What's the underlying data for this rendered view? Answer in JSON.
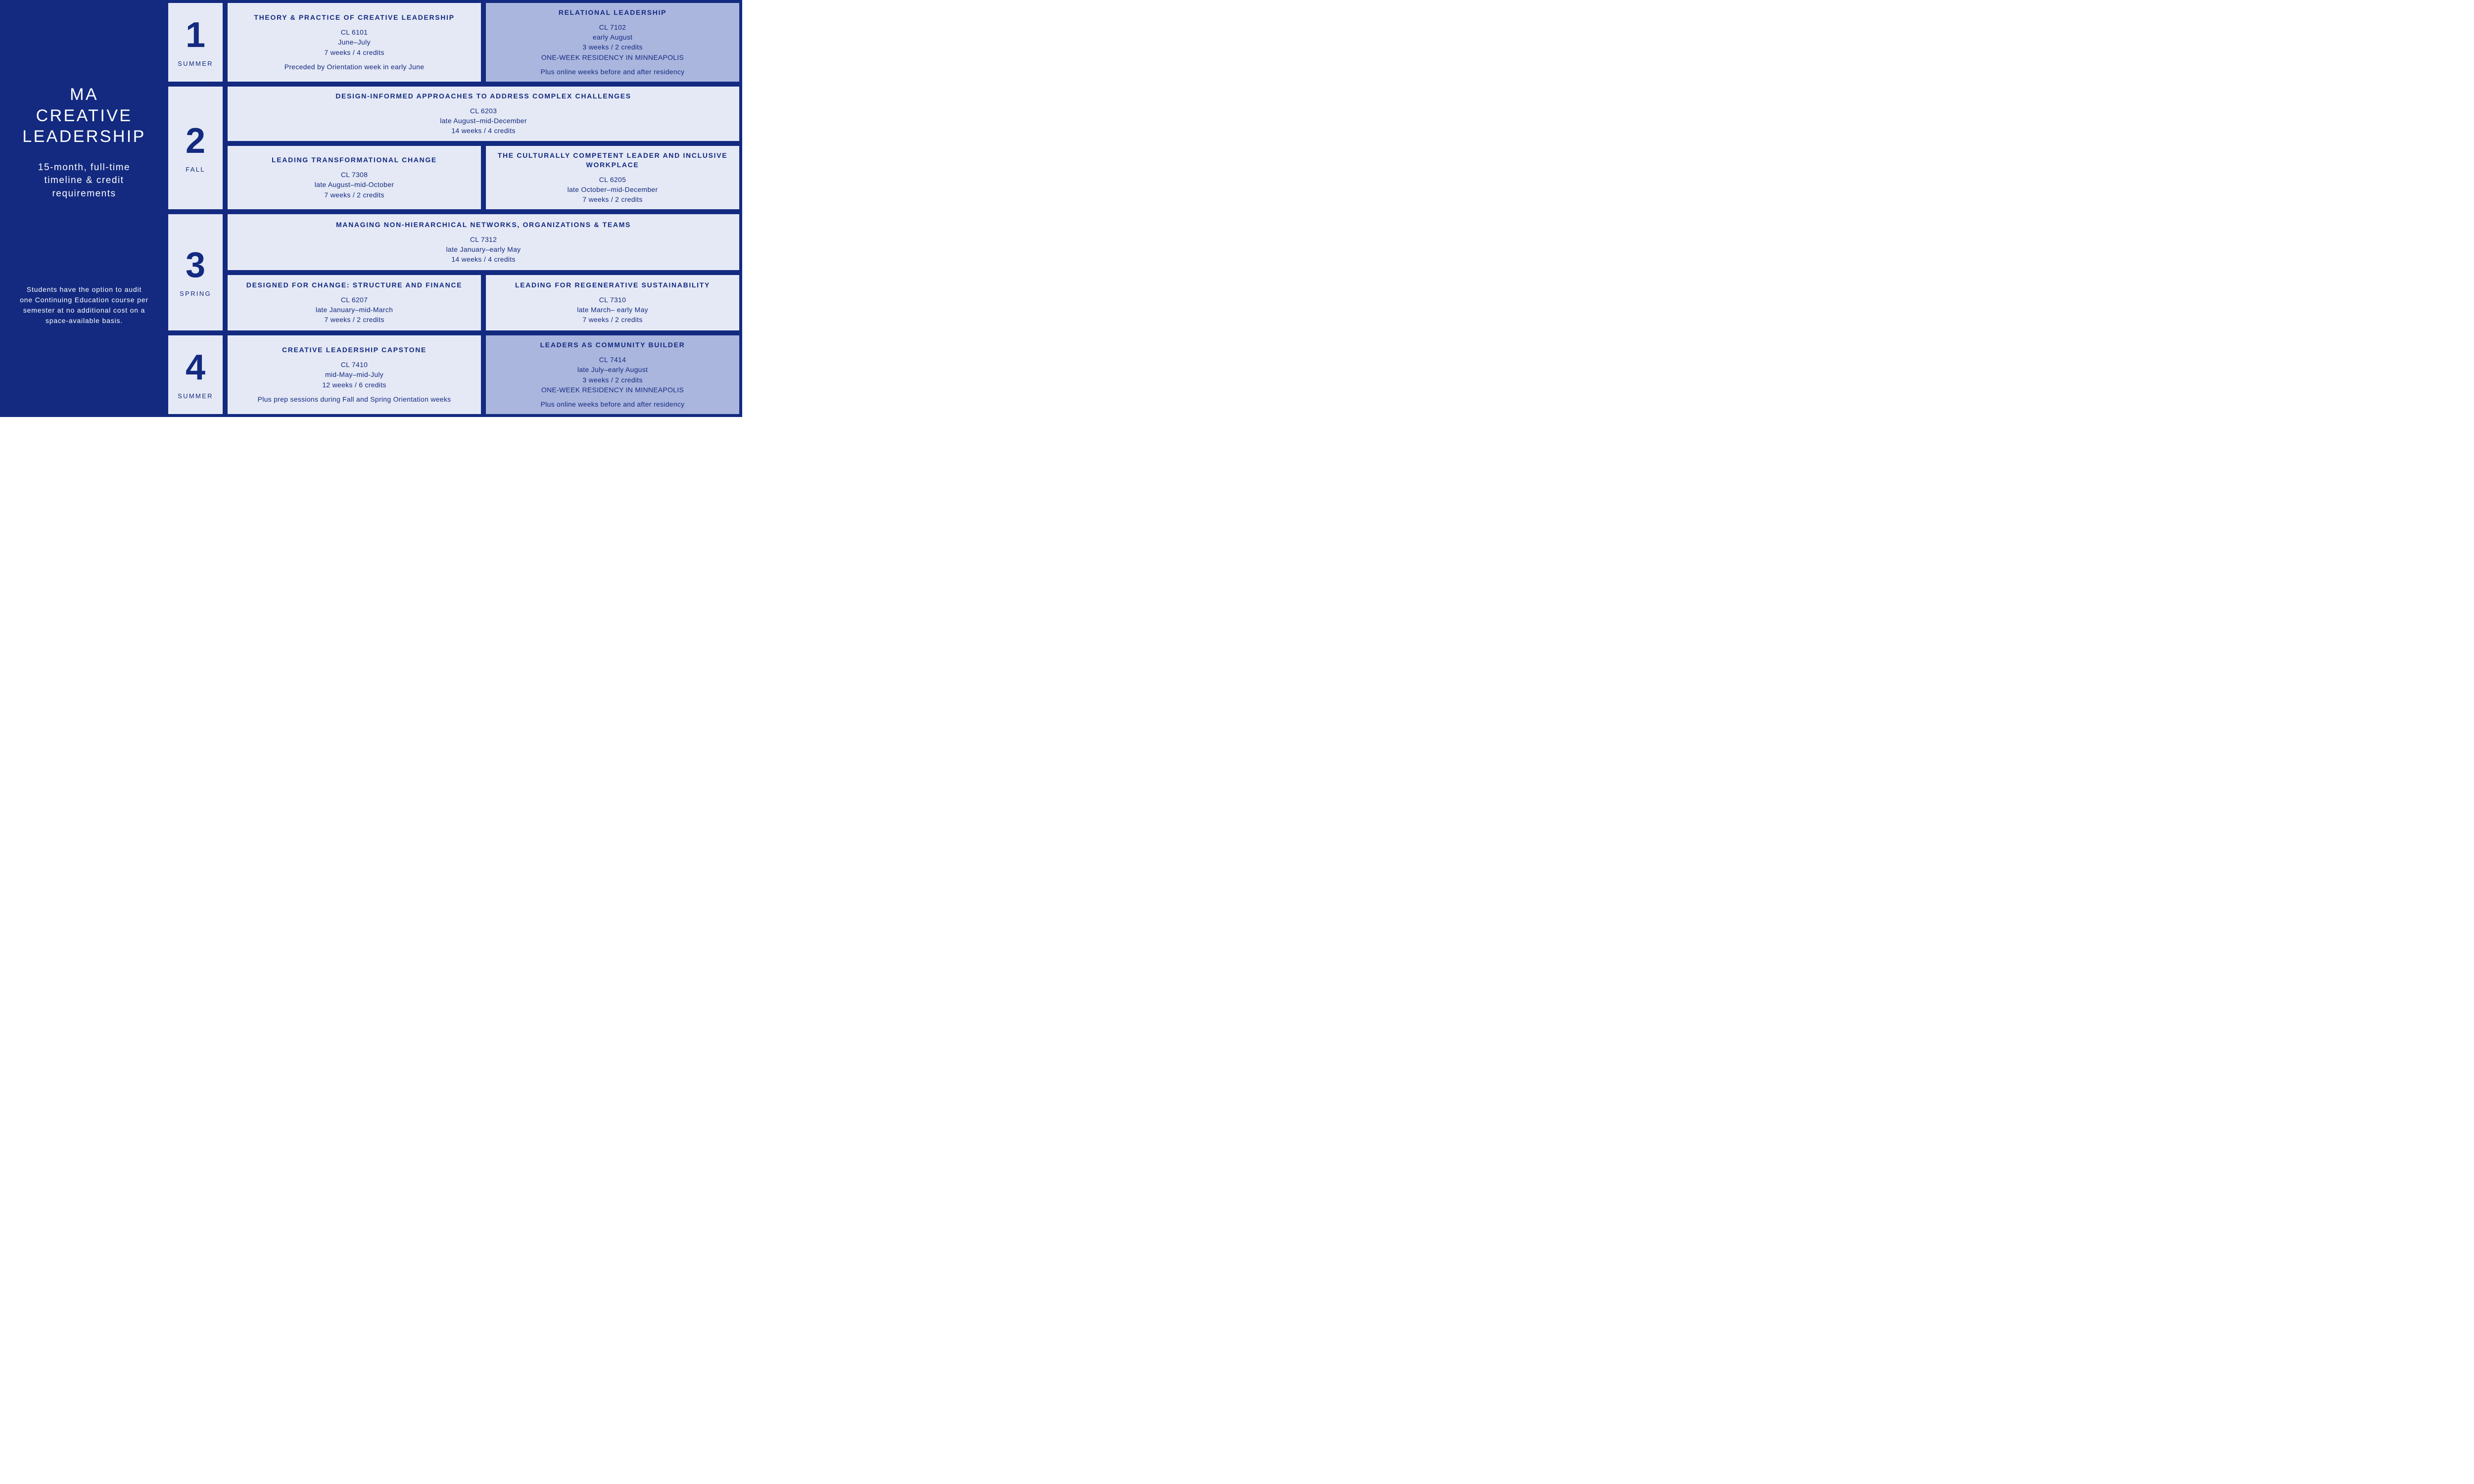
{
  "colors": {
    "navy": "#132a80",
    "cell_light": "#e5e9f5",
    "cell_accent": "#abb6de",
    "white": "#ffffff"
  },
  "sidebar": {
    "title_line1": "MA",
    "title_line2": "CREATIVE",
    "title_line3": "LEADERSHIP",
    "subtitle_line1": "15-month, full-time",
    "subtitle_line2": "timeline & credit",
    "subtitle_line3": "requirements",
    "note": "Students have the option to audit one Continuing Education course per semester at no additional cost on a space-available basis."
  },
  "terms": [
    {
      "num": "1",
      "season": "SUMMER",
      "rows": [
        [
          {
            "variant": "light",
            "title": "THEORY & PRACTICE OF CREATIVE LEADERSHIP",
            "code": "CL 6101",
            "when": "June–July",
            "duration": "7 weeks / 4 credits",
            "extra": "Preceded by Orientation week in early June"
          },
          {
            "variant": "accent",
            "title": "RELATIONAL LEADERSHIP",
            "code": "CL 7102",
            "when": "early August",
            "duration": "3 weeks / 2 credits",
            "residency": "ONE-WEEK RESIDENCY IN MINNEAPOLIS",
            "extra": "Plus online weeks before and after residency"
          }
        ]
      ]
    },
    {
      "num": "2",
      "season": "FALL",
      "rows": [
        [
          {
            "variant": "light",
            "title": "DESIGN-INFORMED APPROACHES TO ADDRESS COMPLEX CHALLENGES",
            "code": "CL 6203",
            "when": "late August–mid-December",
            "duration": "14 weeks / 4 credits"
          }
        ],
        [
          {
            "variant": "light",
            "title": "LEADING TRANSFORMATIONAL CHANGE",
            "code": "CL 7308",
            "when": "late August–mid-October",
            "duration": "7 weeks / 2 credits"
          },
          {
            "variant": "light",
            "title": "THE CULTURALLY COMPETENT LEADER AND INCLUSIVE WORKPLACE",
            "code": "CL 6205",
            "when": "late October–mid-December",
            "duration": "7 weeks / 2 credits"
          }
        ]
      ]
    },
    {
      "num": "3",
      "season": "SPRING",
      "rows": [
        [
          {
            "variant": "light",
            "title": "MANAGING NON-HIERARCHICAL NETWORKS, ORGANIZATIONS & TEAMS",
            "code": "CL 7312",
            "when": "late January–early May",
            "duration": "14 weeks / 4 credits"
          }
        ],
        [
          {
            "variant": "light",
            "title": "DESIGNED FOR CHANGE: STRUCTURE AND FINANCE",
            "code": "CL 6207",
            "when": "late January–mid-March",
            "duration": "7 weeks / 2 credits"
          },
          {
            "variant": "light",
            "title": "LEADING FOR REGENERATIVE SUSTAINABILITY",
            "code": "CL 7310",
            "when": "late March– early May",
            "duration": "7 weeks / 2 credits"
          }
        ]
      ]
    },
    {
      "num": "4",
      "season": "SUMMER",
      "rows": [
        [
          {
            "variant": "light",
            "title": "CREATIVE LEADERSHIP CAPSTONE",
            "code": "CL 7410",
            "when": "mid-May–mid-July",
            "duration": "12 weeks / 6 credits",
            "extra": "Plus prep sessions during Fall and Spring Orientation weeks"
          },
          {
            "variant": "accent",
            "title": "LEADERS AS COMMUNITY BUILDER",
            "code": "CL 7414",
            "when": "late July–early August",
            "duration": "3 weeks / 2 credits",
            "residency": "ONE-WEEK RESIDENCY IN MINNEAPOLIS",
            "extra": "Plus online weeks before and after residency"
          }
        ]
      ]
    }
  ]
}
